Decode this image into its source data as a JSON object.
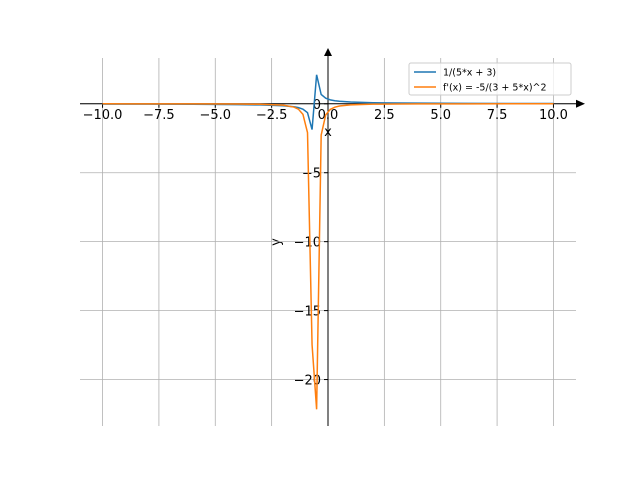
{
  "chart_data": {
    "type": "line",
    "x": [
      -10,
      -8,
      -6,
      -4,
      -3,
      -2,
      -1.515,
      -1.313,
      -1.111,
      -0.909,
      -0.707,
      -0.505,
      -0.303,
      -0.101,
      0.101,
      0.303,
      0.505,
      1,
      2,
      3,
      4,
      6,
      8,
      10
    ],
    "series": [
      {
        "name": "1/(5*x + 3)",
        "color": "#1f77b4",
        "values": [
          -0.02128,
          -0.02703,
          -0.03704,
          -0.05882,
          -0.08333,
          -0.1429,
          -0.2186,
          -0.2805,
          -0.3914,
          -0.6472,
          -1.869,
          2.105,
          0.6734,
          0.4008,
          0.2853,
          0.2215,
          0.181,
          0.125,
          0.07692,
          0.05556,
          0.04348,
          0.0303,
          0.02326,
          0.01887
        ]
      },
      {
        "name": "f'(x) = -5/(3 + 5*x)^2",
        "color": "#ff7f0e",
        "values": [
          -0.00226,
          -0.00365,
          -0.00686,
          -0.0173,
          -0.0347,
          -0.102,
          -0.239,
          -0.393,
          -0.766,
          -2.094,
          -17.47,
          -22.16,
          -2.267,
          -0.803,
          -0.407,
          -0.245,
          -0.164,
          -0.0781,
          -0.0296,
          -0.0154,
          -0.00945,
          -0.00459,
          -0.0027,
          -0.00178
        ]
      }
    ],
    "xlabel": "x",
    "ylabel": "y",
    "xlim": [
      -11,
      11
    ],
    "ylim": [
      -23.37,
      3.32
    ],
    "xticks": [
      {
        "value": -10,
        "label": "−10.0"
      },
      {
        "value": -7.5,
        "label": "−7.5"
      },
      {
        "value": -5,
        "label": "−5.0"
      },
      {
        "value": -2.5,
        "label": "−2.5"
      },
      {
        "value": 0,
        "label": "0.0"
      },
      {
        "value": 2.5,
        "label": "2.5"
      },
      {
        "value": 5,
        "label": "5.0"
      },
      {
        "value": 7.5,
        "label": "7.5"
      },
      {
        "value": 10,
        "label": "10.0"
      }
    ],
    "yticks": [
      {
        "value": -20,
        "label": "−20"
      },
      {
        "value": -15,
        "label": "−15"
      },
      {
        "value": -10,
        "label": "−10"
      },
      {
        "value": -5,
        "label": "−5"
      },
      0
    ],
    "grid": true,
    "legend": "upper right"
  }
}
